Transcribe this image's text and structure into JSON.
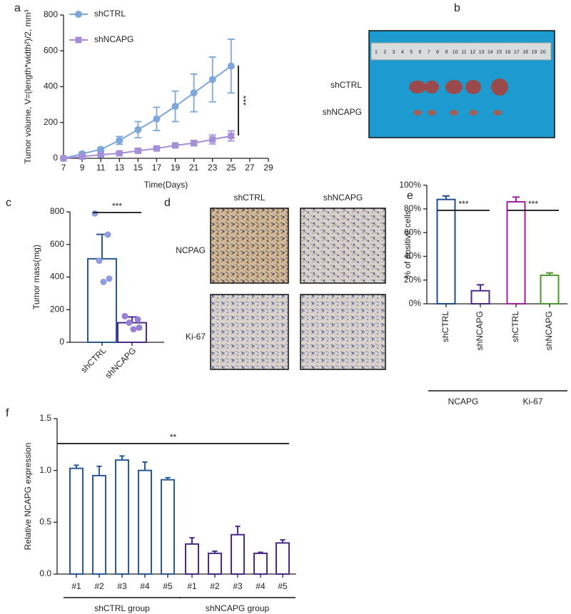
{
  "chart_data": [
    {
      "type": "line",
      "panel": "a",
      "xlabel": "Time(Days)",
      "ylabel": "Tumor volume, V=(length*width²)/2, mm³",
      "x": [
        7,
        9,
        11,
        13,
        15,
        17,
        19,
        21,
        23,
        25
      ],
      "series": [
        {
          "name": "shCTRL",
          "color": "#7ea7dc",
          "marker": "circle",
          "values": [
            0,
            25,
            50,
            100,
            160,
            220,
            290,
            365,
            440,
            515
          ],
          "errors": [
            0,
            8,
            10,
            22,
            45,
            65,
            85,
            105,
            125,
            150
          ]
        },
        {
          "name": "shNCAPG",
          "color": "#a48fd8",
          "marker": "square",
          "values": [
            0,
            10,
            20,
            28,
            42,
            55,
            72,
            85,
            105,
            125
          ],
          "errors": [
            0,
            5,
            5,
            5,
            8,
            8,
            8,
            15,
            25,
            28
          ]
        }
      ],
      "xlim": [
        7,
        29
      ],
      "xticks": [
        7,
        9,
        11,
        13,
        15,
        17,
        19,
        21,
        23,
        25,
        27,
        29
      ],
      "ylim": [
        0,
        800
      ],
      "yticks": [
        0,
        200,
        400,
        600,
        800
      ],
      "annotations": [
        "***"
      ]
    },
    {
      "type": "image",
      "panel": "b",
      "ruler_labels": [
        "1",
        "2",
        "3",
        "4",
        "5",
        "6",
        "7",
        "8",
        "9",
        "10",
        "11",
        "12",
        "13",
        "14",
        "15",
        "16",
        "17",
        "18",
        "19",
        "20"
      ],
      "row_labels": [
        "shCTRL",
        "shNCAPG"
      ]
    },
    {
      "type": "bar",
      "panel": "c",
      "ylabel": "Tumor mass(mg)",
      "categories": [
        "shCTRL",
        "shNCAPG"
      ],
      "values": [
        512,
        120
      ],
      "errors": [
        150,
        35
      ],
      "colors": [
        "#2a5a8c",
        "#4b2a8c"
      ],
      "points": [
        [
          790,
          660,
          500,
          390,
          370
        ],
        [
          160,
          140,
          120,
          90,
          80
        ]
      ],
      "point_colors": [
        "#8f9ce0",
        "#9a7fd6"
      ],
      "ylim": [
        0,
        800
      ],
      "yticks": [
        0,
        200,
        400,
        600,
        800
      ],
      "annotations": [
        "***"
      ]
    },
    {
      "type": "image",
      "panel": "d",
      "column_labels": [
        "shCTRL",
        "shNCAPG"
      ],
      "row_labels": [
        "NCPAG",
        "Ki-67"
      ]
    },
    {
      "type": "bar",
      "panel": "e",
      "ylabel": "% of positive cells",
      "categories": [
        "shCTRL",
        "shNCAPG",
        "shCTRL",
        "shNCAPG"
      ],
      "groups": [
        "NCAPG",
        "Ki-67"
      ],
      "values": [
        88,
        11,
        86,
        24
      ],
      "errors": [
        3,
        5,
        4,
        2
      ],
      "colors": [
        "#1f4e8c",
        "#4b2a8c",
        "#a020a0",
        "#4c9a2a"
      ],
      "ylim": [
        0,
        100
      ],
      "yticks": [
        {
          "value": 0,
          "label": "0%"
        },
        {
          "value": 20,
          "label": "20%"
        },
        {
          "value": 40,
          "label": "40%"
        },
        {
          "value": 60,
          "label": "60%"
        },
        {
          "value": 80,
          "label": "80%"
        },
        {
          "value": 100,
          "label": "100%"
        }
      ],
      "annotations": [
        "***",
        "***"
      ]
    },
    {
      "type": "bar",
      "panel": "f",
      "ylabel": "Relative NCAPG expression",
      "categories": [
        "#1",
        "#2",
        "#3",
        "#4",
        "#5",
        "#1",
        "#2",
        "#3",
        "#4",
        "#5"
      ],
      "groups": [
        "shCTRL group",
        "shNCAPG group"
      ],
      "values": [
        1.02,
        0.95,
        1.1,
        1.0,
        0.91,
        0.29,
        0.2,
        0.38,
        0.2,
        0.3
      ],
      "errors": [
        0.03,
        0.09,
        0.04,
        0.08,
        0.02,
        0.06,
        0.02,
        0.08,
        0.01,
        0.03
      ],
      "colors": [
        "#2a5a9c",
        "#2a5a9c",
        "#2a5a9c",
        "#2a5a9c",
        "#2a5a9c",
        "#4b2a8c",
        "#4b2a8c",
        "#4b2a8c",
        "#4b2a8c",
        "#4b2a8c"
      ],
      "ylim": [
        0,
        1.5
      ],
      "yticks": [
        {
          "value": 0,
          "label": "0.0"
        },
        0.5,
        {
          "value": 1,
          "label": "1.0"
        },
        1.5
      ],
      "annotations": [
        "**"
      ]
    }
  ]
}
